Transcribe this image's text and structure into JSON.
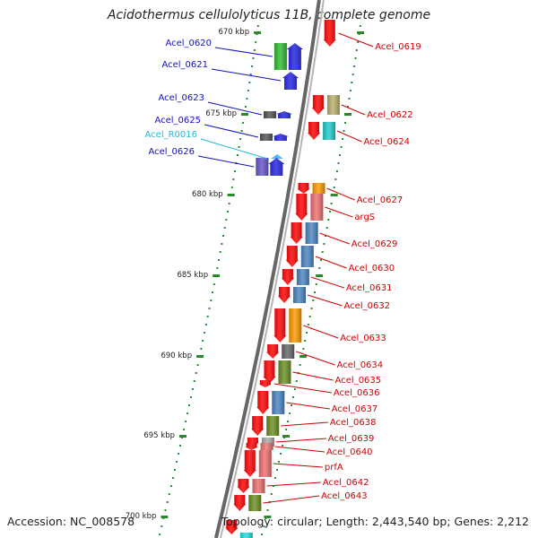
{
  "title": "Acidothermus cellulolyticus 11B, complete genome",
  "footer": {
    "accession": "Accession: NC_008578",
    "info": "Topology: circular; Length: 2,443,540 bp; Genes: 2,212"
  },
  "colors": {
    "forward_label": "#1010c0",
    "reverse_label": "#d00000",
    "rna_label": "#20b8d8",
    "backbone": "#8a8a8a",
    "tick": "#2a8a2a"
  },
  "kbp_ticks": [
    "670 kbp",
    "675 kbp",
    "680 kbp",
    "685 kbp",
    "690 kbp",
    "695 kbp",
    "700 kbp"
  ],
  "forward_genes": [
    {
      "label": "Acel_0620",
      "color": "#2020e0",
      "cog": "#33bb33"
    },
    {
      "label": "Acel_0621",
      "color": "#2020e0",
      "cog": ""
    },
    {
      "label": "Acel_0623",
      "color": "#2020e0",
      "cog": "#555555"
    },
    {
      "label": "Acel_0625",
      "color": "#2020e0",
      "cog": "#555555"
    },
    {
      "label": "Acel_R0016",
      "color": "#55b8ff",
      "cog": ""
    },
    {
      "label": "Acel_0626",
      "color": "#2020e0",
      "cog": "#6655cc"
    }
  ],
  "reverse_genes": [
    {
      "label": "Acel_0619",
      "cog": ""
    },
    {
      "label": "Acel_0622",
      "cog": "#b8b070"
    },
    {
      "label": "Acel_0624",
      "cog": "#22cccc"
    },
    {
      "label": "Acel_0627",
      "cog": "#ff9900"
    },
    {
      "label": "argS",
      "cog": "#ee7070"
    },
    {
      "label": "Acel_0629",
      "cog": "#4a86c0"
    },
    {
      "label": "Acel_0630",
      "cog": "#4a86c0"
    },
    {
      "label": "Acel_0631",
      "cog": "#4a86c0"
    },
    {
      "label": "Acel_0632",
      "cog": "#4a86c0"
    },
    {
      "label": "Acel_0633",
      "cog": "#ff9900"
    },
    {
      "label": "Acel_0634",
      "cog": "#666666"
    },
    {
      "label": "Acel_0635",
      "cog": "#6b8e23"
    },
    {
      "label": "Acel_0636",
      "cog": ""
    },
    {
      "label": "Acel_0637",
      "cog": "#4a86c0"
    },
    {
      "label": "Acel_0638",
      "cog": "#6b8e23"
    },
    {
      "label": "Acel_0639",
      "cog": "#aaaaaa"
    },
    {
      "label": "Acel_0640",
      "cog": "#ee7070"
    },
    {
      "label": "prfA",
      "cog": "#ee7070"
    },
    {
      "label": "Acel_0642",
      "cog": "#ee7070"
    },
    {
      "label": "Acel_0643",
      "cog": "#6b8e23"
    }
  ]
}
